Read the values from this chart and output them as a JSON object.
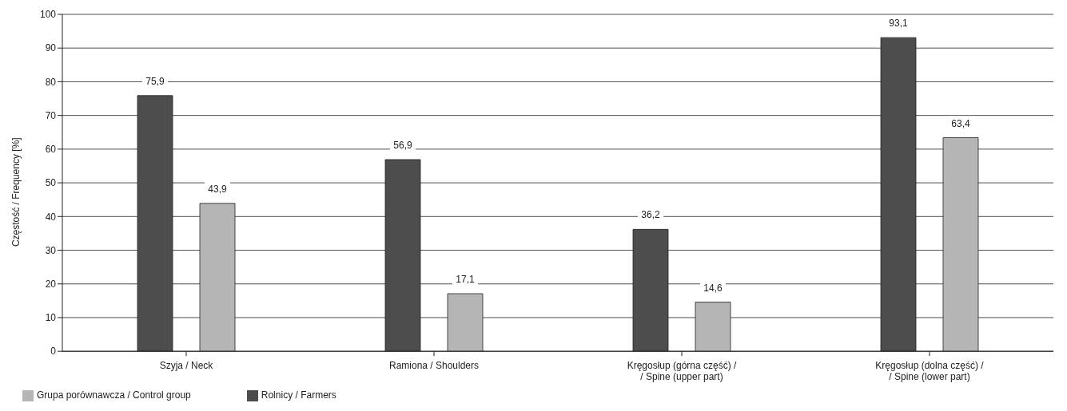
{
  "chart_data": {
    "type": "bar",
    "ylabel": "Częstość / Frequency [%]",
    "categories": [
      "Szyja / Neck",
      "Ramiona / Shoulders",
      "Kręgosłup (górna część) /\n/ Spine (upper part)",
      "Kręgosłup (dolna część) /\n/ Spine (lower part)"
    ],
    "series": [
      {
        "name": "Rolnicy / Farmers",
        "color": "#4d4d4d",
        "values": [
          75.9,
          56.9,
          36.2,
          93.1
        ],
        "value_labels": [
          "75,9",
          "56,9",
          "36,2",
          "93,1"
        ]
      },
      {
        "name": "Grupa porównawcza / Control group",
        "color": "#b5b5b5",
        "values": [
          43.9,
          17.1,
          14.6,
          63.4
        ],
        "value_labels": [
          "43,9",
          "17,1",
          "14,6",
          "63,4"
        ]
      }
    ],
    "ylim": [
      0,
      100
    ],
    "yticks": [
      0,
      10,
      20,
      30,
      40,
      50,
      60,
      70,
      80,
      90,
      100
    ],
    "grid": "y",
    "legend": "bottom left"
  }
}
